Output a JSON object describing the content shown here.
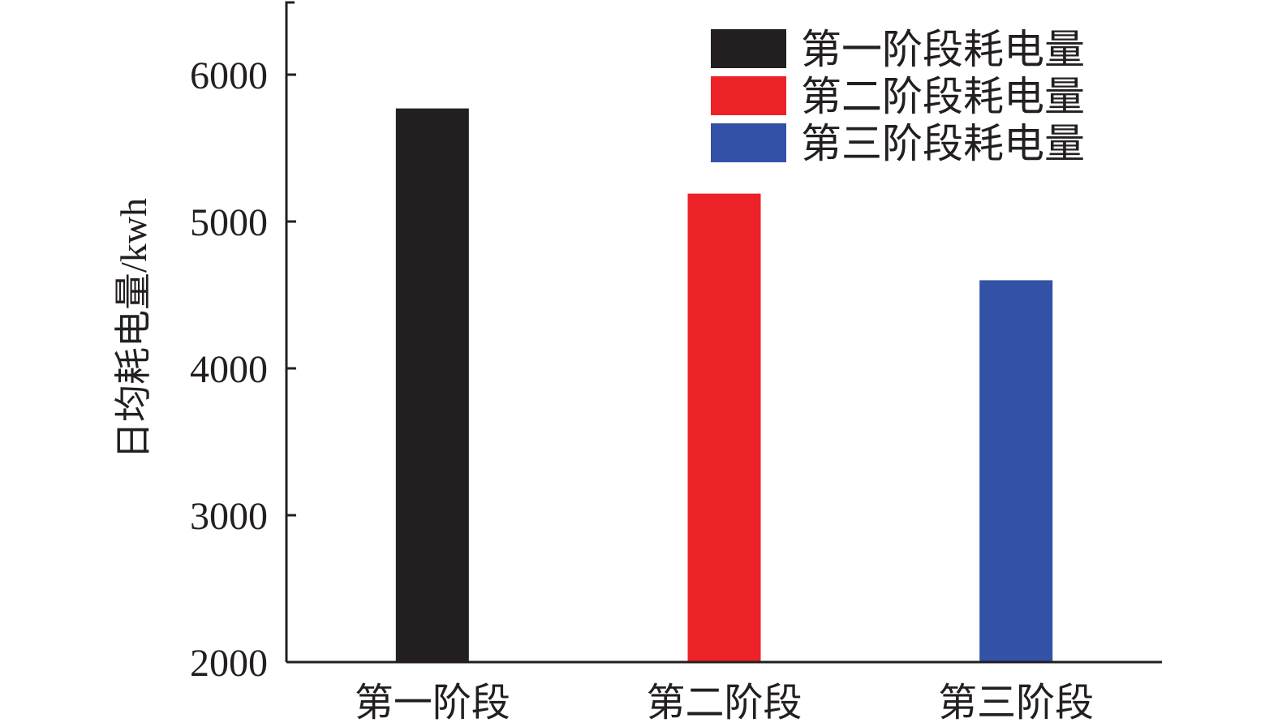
{
  "chart_data": {
    "type": "bar",
    "categories": [
      "第一阶段",
      "第二阶段",
      "第三阶段"
    ],
    "values": [
      5770,
      5190,
      4600
    ],
    "ylabel": "日均耗电量/kwh",
    "xlabel": "",
    "ylim": [
      2000,
      6500
    ],
    "yticks": [
      2000,
      3000,
      4000,
      5000,
      6000
    ],
    "bar_colors": [
      "#231f20",
      "#ed2228",
      "#3451a8"
    ],
    "legend": {
      "placement": "top-right",
      "entries": [
        "第一阶段耗电量",
        "第二阶段耗电量",
        "第三阶段耗电量"
      ]
    },
    "grid": false
  }
}
